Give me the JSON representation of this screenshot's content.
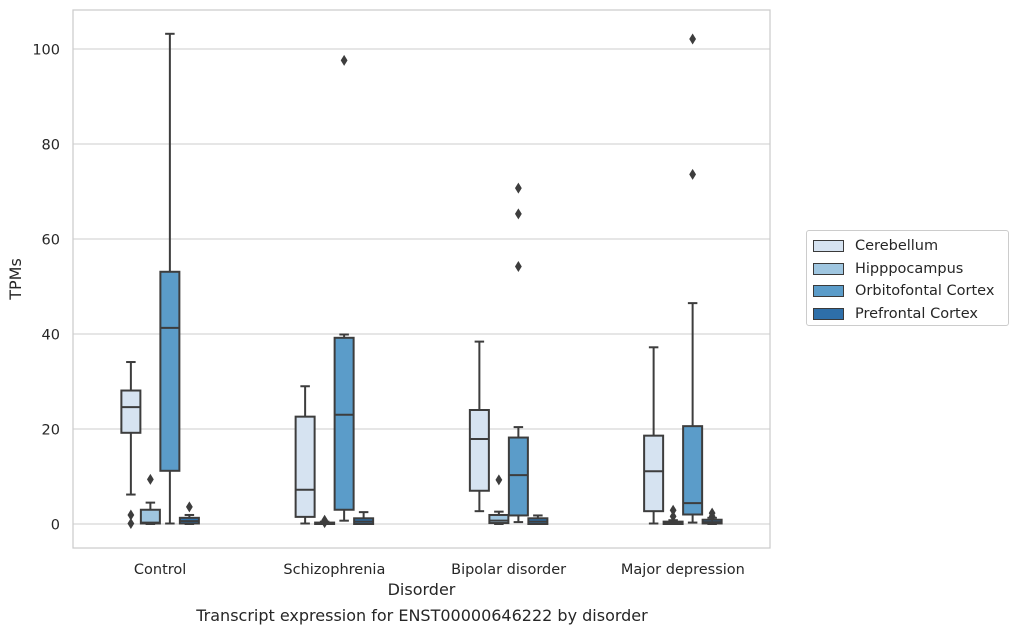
{
  "caption": "Transcript expression for ENST00000646222 by disorder",
  "chart_data": {
    "type": "box",
    "title": "",
    "xlabel": "Disorder",
    "ylabel": "TPMs",
    "ylim": [
      -5,
      108
    ],
    "yticks": [
      0,
      20,
      40,
      60,
      80,
      100
    ],
    "grid": "horizontal",
    "legend_position": "right",
    "categories": [
      "Control",
      "Schizophrenia",
      "Bipolar disorder",
      "Major depression"
    ],
    "series": [
      {
        "name": "Cerebellum",
        "color": "#d6e3f1",
        "boxes": [
          {
            "whisker_low": 6.2,
            "q1": 19.2,
            "median": 24.6,
            "q3": 28.1,
            "whisker_high": 34.1,
            "outliers": [
              1.9,
              0.1
            ]
          },
          {
            "whisker_low": 0.1,
            "q1": 1.5,
            "median": 7.2,
            "q3": 22.6,
            "whisker_high": 29.0,
            "outliers": []
          },
          {
            "whisker_low": 2.7,
            "q1": 7.0,
            "median": 17.9,
            "q3": 24.0,
            "whisker_high": 38.4,
            "outliers": []
          },
          {
            "whisker_low": 0.1,
            "q1": 2.7,
            "median": 11.1,
            "q3": 18.6,
            "whisker_high": 37.2,
            "outliers": []
          }
        ]
      },
      {
        "name": "Hipppocampus",
        "color": "#9fc6e0",
        "boxes": [
          {
            "whisker_low": 0.0,
            "q1": 0.1,
            "median": 0.3,
            "q3": 3.0,
            "whisker_high": 4.5,
            "outliers": [
              9.4
            ]
          },
          {
            "whisker_low": 0.0,
            "q1": 0.0,
            "median": 0.1,
            "q3": 0.3,
            "whisker_high": 0.5,
            "outliers": [
              0.8,
              0.3
            ]
          },
          {
            "whisker_low": 0.0,
            "q1": 0.2,
            "median": 0.7,
            "q3": 1.9,
            "whisker_high": 2.6,
            "outliers": [
              9.3
            ]
          },
          {
            "whisker_low": 0.0,
            "q1": 0.0,
            "median": 0.2,
            "q3": 0.5,
            "whisker_high": 0.8,
            "outliers": [
              2.9,
              1.6
            ]
          }
        ]
      },
      {
        "name": "Orbitofontal Cortex",
        "color": "#5b9cc9",
        "boxes": [
          {
            "whisker_low": 0.1,
            "q1": 11.2,
            "median": 41.3,
            "q3": 53.1,
            "whisker_high": 103.2,
            "outliers": []
          },
          {
            "whisker_low": 0.7,
            "q1": 3.0,
            "median": 23.0,
            "q3": 39.2,
            "whisker_high": 39.9,
            "outliers": [
              97.6
            ]
          },
          {
            "whisker_low": 0.4,
            "q1": 1.8,
            "median": 10.3,
            "q3": 18.2,
            "whisker_high": 20.4,
            "outliers": [
              70.7,
              65.3,
              54.2
            ]
          },
          {
            "whisker_low": 0.3,
            "q1": 2.0,
            "median": 4.4,
            "q3": 20.6,
            "whisker_high": 46.5,
            "outliers": [
              102.1,
              73.6
            ]
          }
        ]
      },
      {
        "name": "Prefrontal Cortex",
        "color": "#2e6fa9",
        "boxes": [
          {
            "whisker_low": 0.0,
            "q1": 0.1,
            "median": 0.6,
            "q3": 1.3,
            "whisker_high": 1.9,
            "outliers": [
              3.6
            ]
          },
          {
            "whisker_low": 0.0,
            "q1": 0.0,
            "median": 0.5,
            "q3": 1.2,
            "whisker_high": 2.5,
            "outliers": []
          },
          {
            "whisker_low": 0.0,
            "q1": 0.0,
            "median": 0.5,
            "q3": 1.2,
            "whisker_high": 1.8,
            "outliers": []
          },
          {
            "whisker_low": 0.0,
            "q1": 0.1,
            "median": 0.4,
            "q3": 0.9,
            "whisker_high": 1.3,
            "outliers": [
              2.3,
              1.6
            ]
          }
        ]
      }
    ]
  }
}
